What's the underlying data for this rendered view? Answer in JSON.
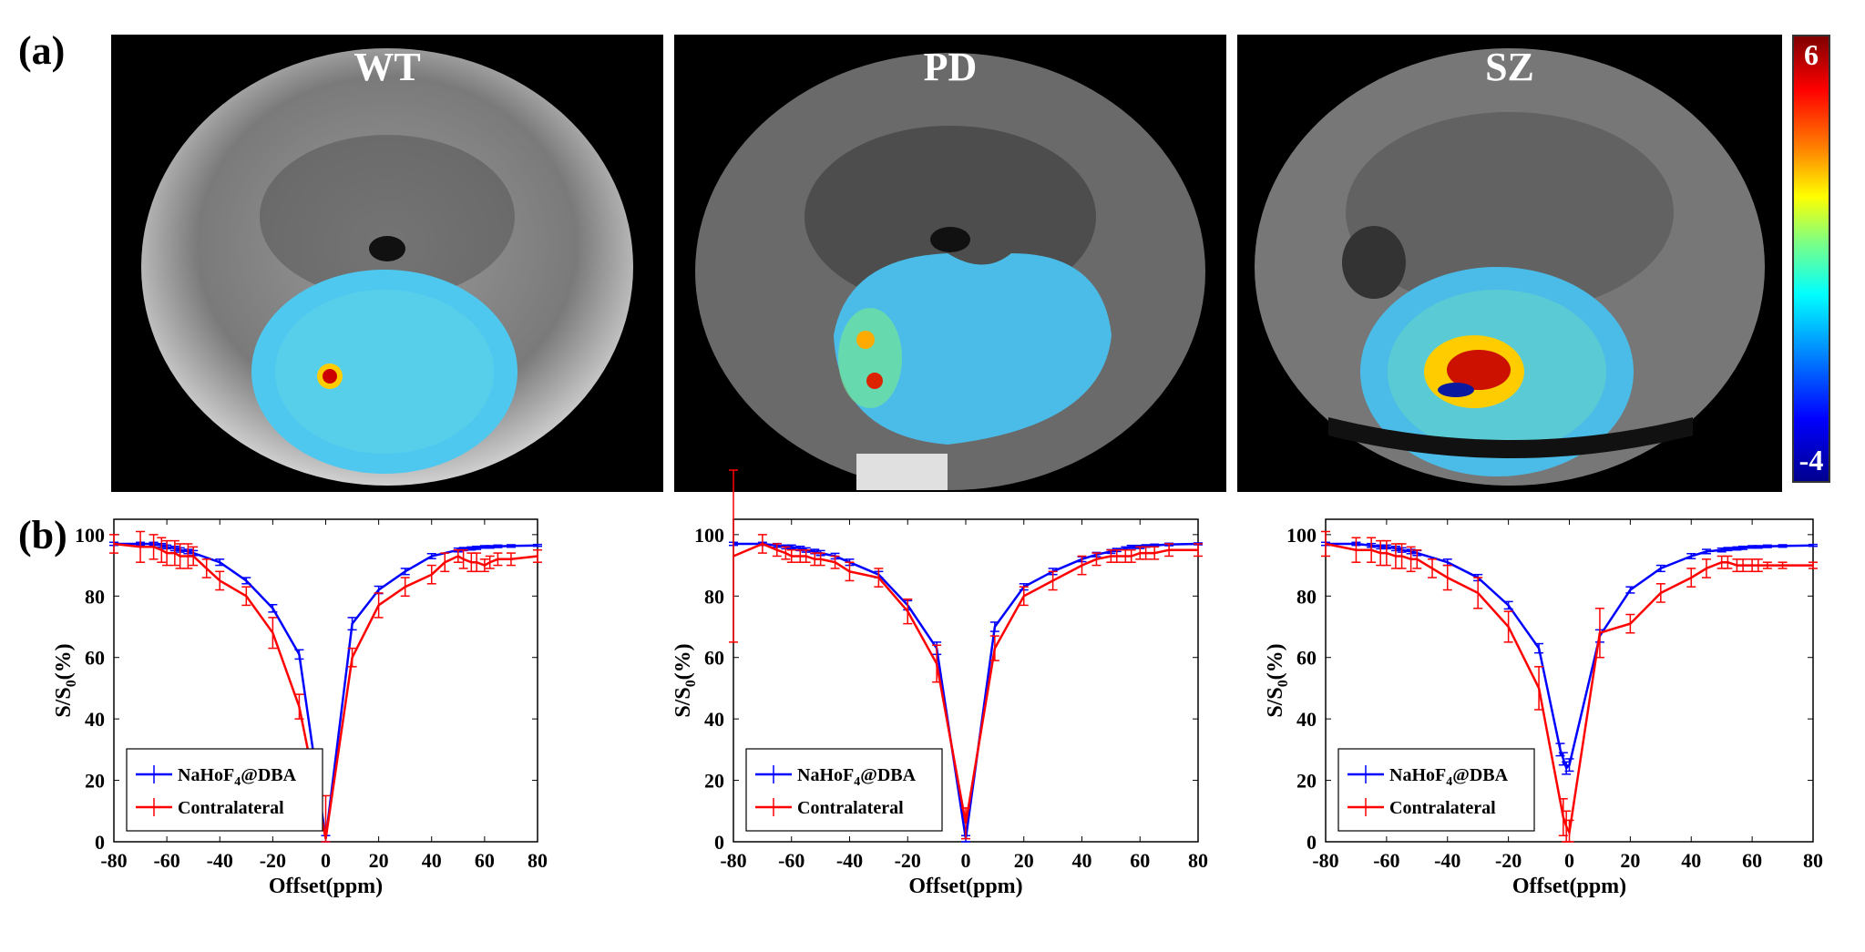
{
  "figure": {
    "label_a": "(a)",
    "label_b": "(b)",
    "image_titles": [
      "WT",
      "PD",
      "SZ"
    ],
    "colorbar": {
      "max_label": "6",
      "min_label": "-4"
    }
  },
  "chart_data": [
    {
      "type": "line",
      "panel": "WT",
      "xlabel": "Offset(ppm)",
      "ylabel_main": "S/S",
      "ylabel_sub": "0",
      "ylabel_tail": "(%)",
      "xlim": [
        -80,
        80
      ],
      "ylim": [
        0,
        105
      ],
      "xticks": [
        "-80",
        "-60",
        "-40",
        "-20",
        "0",
        "20",
        "40",
        "60",
        "80"
      ],
      "yticks": [
        "0",
        "20",
        "40",
        "60",
        "80",
        "100"
      ],
      "legend_entries": [
        {
          "main": "NaHoF",
          "sub": "4",
          "tail": "@DBA"
        },
        {
          "main": "Contralateral",
          "sub": "",
          "tail": ""
        }
      ],
      "legend_position": "bottom-left",
      "series": [
        {
          "name": "NaHoF4@DBA",
          "color": "#0000ff",
          "x": [
            -80,
            -70,
            -65,
            -62,
            -60,
            -57,
            -55,
            -52,
            -50,
            -40,
            -30,
            -20,
            -10,
            0,
            10,
            20,
            30,
            40,
            50,
            52,
            55,
            57,
            60,
            62,
            65,
            70,
            80
          ],
          "y": [
            97,
            97,
            97,
            96.5,
            96,
            95.5,
            95,
            94.5,
            94,
            91,
            85,
            76,
            61,
            1,
            71,
            82,
            88,
            93,
            95,
            95.3,
            95.5,
            95.7,
            96,
            96,
            96.2,
            96.3,
            96.5
          ],
          "err": [
            0.5,
            0.5,
            0.5,
            0.6,
            0.6,
            0.7,
            0.7,
            0.7,
            0.8,
            1,
            1,
            1.2,
            1.5,
            1,
            2,
            1.2,
            1,
            0.8,
            0.6,
            0.5,
            0.5,
            0.5,
            0.4,
            0.4,
            0.4,
            0.4,
            0.3
          ]
        },
        {
          "name": "Contralateral",
          "color": "#ff0000",
          "x": [
            -80,
            -70,
            -65,
            -62,
            -60,
            -57,
            -55,
            -52,
            -50,
            -45,
            -40,
            -30,
            -20,
            -10,
            0,
            10,
            20,
            30,
            40,
            45,
            50,
            52,
            55,
            57,
            60,
            62,
            65,
            70,
            80
          ],
          "y": [
            97,
            96,
            96,
            95,
            94,
            94,
            93,
            93,
            93,
            89,
            85,
            80,
            68,
            44,
            1,
            60,
            77,
            83,
            87,
            91,
            93,
            92,
            91,
            91,
            90,
            91,
            92,
            92,
            93
          ],
          "err": [
            3,
            5,
            4,
            4,
            4,
            4,
            4,
            4,
            3,
            3,
            3,
            3,
            5,
            4,
            14,
            3,
            4,
            3,
            3,
            3,
            2,
            3,
            3,
            3,
            2,
            2,
            2,
            2,
            2
          ]
        }
      ]
    },
    {
      "type": "line",
      "panel": "PD",
      "xlabel": "Offset(ppm)",
      "ylabel_main": "S/S",
      "ylabel_sub": "0",
      "ylabel_tail": "(%)",
      "xlim": [
        -80,
        80
      ],
      "ylim": [
        0,
        105
      ],
      "xticks": [
        "-80",
        "-60",
        "-40",
        "-20",
        "0",
        "20",
        "40",
        "60",
        "80"
      ],
      "yticks": [
        "0",
        "20",
        "40",
        "60",
        "80",
        "100"
      ],
      "legend_entries": [
        {
          "main": "NaHoF",
          "sub": "4",
          "tail": "@DBA"
        },
        {
          "main": "Contralateral",
          "sub": "",
          "tail": ""
        }
      ],
      "legend_position": "bottom-left",
      "series": [
        {
          "name": "NaHoF4@DBA",
          "color": "#0000ff",
          "x": [
            -80,
            -70,
            -65,
            -62,
            -60,
            -57,
            -55,
            -52,
            -50,
            -45,
            -40,
            -30,
            -20,
            -10,
            0,
            10,
            20,
            30,
            40,
            45,
            50,
            52,
            55,
            57,
            60,
            62,
            65,
            70,
            80
          ],
          "y": [
            97,
            97,
            96.5,
            96,
            96,
            95.5,
            95,
            94.5,
            94,
            93,
            91,
            87,
            77,
            63,
            1,
            70,
            83,
            88,
            92,
            93.5,
            94.5,
            95,
            95.5,
            96,
            96,
            96.3,
            96.5,
            96.8,
            97
          ],
          "err": [
            0.5,
            0.5,
            0.6,
            0.6,
            0.6,
            0.7,
            0.7,
            0.7,
            0.8,
            0.9,
            1,
            1,
            1.5,
            2,
            1,
            1.5,
            1,
            1,
            0.8,
            0.7,
            0.6,
            0.5,
            0.5,
            0.5,
            0.5,
            0.4,
            0.4,
            0.4,
            0.3
          ]
        },
        {
          "name": "Contralateral",
          "color": "#ff0000",
          "x": [
            -80,
            -70,
            -65,
            -62,
            -60,
            -57,
            -55,
            -52,
            -50,
            -45,
            -40,
            -30,
            -20,
            -10,
            0,
            10,
            20,
            30,
            40,
            45,
            50,
            52,
            55,
            57,
            60,
            62,
            65,
            70,
            80
          ],
          "y": [
            93,
            97,
            95,
            94,
            93,
            93,
            93,
            92,
            92,
            91,
            88,
            86,
            75,
            58,
            6,
            63,
            80,
            85,
            90,
            92,
            93,
            93,
            93,
            93,
            94,
            94,
            94,
            95,
            95
          ],
          "err": [
            28,
            3,
            2,
            2,
            2,
            2,
            2,
            2,
            2,
            2,
            3,
            3,
            4,
            6,
            5,
            4,
            3,
            3,
            3,
            2,
            2,
            2,
            2,
            2,
            2,
            2,
            2,
            2,
            2
          ]
        }
      ]
    },
    {
      "type": "line",
      "panel": "SZ",
      "xlabel": "Offset(ppm)",
      "ylabel_main": "S/S",
      "ylabel_sub": "0",
      "ylabel_tail": "(%)",
      "xlim": [
        -80,
        80
      ],
      "ylim": [
        0,
        105
      ],
      "xticks": [
        "-80",
        "-60",
        "-40",
        "-20",
        "0",
        "20",
        "40",
        "60",
        "80"
      ],
      "yticks": [
        "0",
        "20",
        "40",
        "60",
        "80",
        "100"
      ],
      "legend_entries": [
        {
          "main": "NaHoF",
          "sub": "4",
          "tail": "@DBA"
        },
        {
          "main": "Contralateral",
          "sub": "",
          "tail": ""
        }
      ],
      "legend_position": "bottom-left",
      "series": [
        {
          "name": "NaHoF4@DBA",
          "color": "#0000ff",
          "x": [
            -80,
            -70,
            -65,
            -62,
            -60,
            -57,
            -55,
            -52,
            -50,
            -40,
            -30,
            -20,
            -10,
            -3,
            -2,
            -1,
            0,
            10,
            20,
            30,
            40,
            45,
            50,
            52,
            55,
            57,
            60,
            62,
            65,
            70,
            80
          ],
          "y": [
            97,
            97,
            96.5,
            96,
            96,
            95.5,
            95,
            94.5,
            94,
            91,
            86,
            77,
            63,
            30,
            27,
            24,
            25,
            67,
            82,
            89,
            93,
            94.5,
            95,
            95.3,
            95.5,
            95.7,
            96,
            96,
            96.2,
            96.3,
            96.5
          ],
          "err": [
            0.5,
            0.5,
            0.6,
            0.6,
            0.6,
            0.7,
            0.7,
            0.7,
            0.8,
            1,
            1,
            1.2,
            1.5,
            2,
            2,
            2,
            2,
            2,
            1,
            1,
            0.8,
            0.7,
            0.6,
            0.5,
            0.5,
            0.5,
            0.4,
            0.4,
            0.4,
            0.4,
            0.3
          ]
        },
        {
          "name": "Contralateral",
          "color": "#ff0000",
          "x": [
            -80,
            -70,
            -65,
            -62,
            -60,
            -57,
            -55,
            -52,
            -50,
            -45,
            -40,
            -30,
            -20,
            -10,
            -2,
            -1,
            0,
            10,
            20,
            30,
            40,
            45,
            50,
            52,
            55,
            57,
            60,
            62,
            65,
            70,
            80
          ],
          "y": [
            97,
            95,
            95,
            94,
            94,
            93,
            93,
            92,
            92,
            89,
            86,
            81,
            70,
            50,
            8,
            5,
            3,
            68,
            71,
            81,
            86,
            89,
            91,
            91,
            90,
            90,
            90,
            90,
            90,
            90,
            90
          ],
          "err": [
            4,
            4,
            4,
            4,
            4,
            4,
            4,
            4,
            3,
            3,
            4,
            5,
            5,
            7,
            6,
            5,
            4,
            8,
            3,
            3,
            3,
            3,
            2,
            2,
            2,
            2,
            2,
            2,
            1,
            1,
            1
          ]
        }
      ]
    }
  ]
}
